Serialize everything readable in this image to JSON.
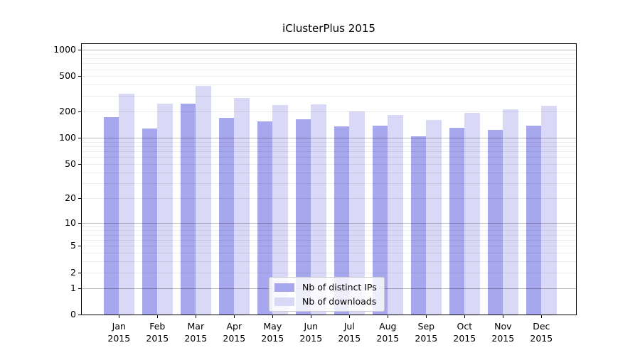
{
  "chart_data": {
    "type": "bar",
    "title": "iClusterPlus 2015",
    "categories": [
      "Jan 2015",
      "Feb 2015",
      "Mar 2015",
      "Apr 2015",
      "May 2015",
      "Jun 2015",
      "Jul 2015",
      "Aug 2015",
      "Sep 2015",
      "Oct 2015",
      "Nov 2015",
      "Dec 2015"
    ],
    "series": [
      {
        "name": "Nb of distinct IPs",
        "color": "#a7a7ee",
        "values": [
          170,
          127,
          246,
          167,
          154,
          161,
          134,
          137,
          103,
          130,
          122,
          137
        ]
      },
      {
        "name": "Nb of downloads",
        "color": "#d9d9f7",
        "values": [
          319,
          245,
          390,
          284,
          236,
          238,
          200,
          183,
          158,
          191,
          212,
          230
        ]
      }
    ],
    "yscale": "log1p",
    "ylim": [
      0,
      1160
    ],
    "yticks": [
      0,
      1,
      2,
      5,
      10,
      20,
      50,
      100,
      200,
      500,
      1000
    ],
    "grid_major": [
      1,
      10,
      100,
      1000
    ],
    "grid_minor": [
      2,
      3,
      4,
      5,
      6,
      7,
      8,
      9,
      20,
      30,
      40,
      50,
      60,
      70,
      80,
      90,
      200,
      300,
      400,
      500,
      600,
      700,
      800,
      900
    ],
    "legend": {
      "position": "lower center"
    },
    "grid": "on",
    "xlabel": "",
    "ylabel": "",
    "axis_color": "#000000",
    "grid_major_color": "#bdbdbd",
    "grid_minor_color": "#ebebeb"
  }
}
